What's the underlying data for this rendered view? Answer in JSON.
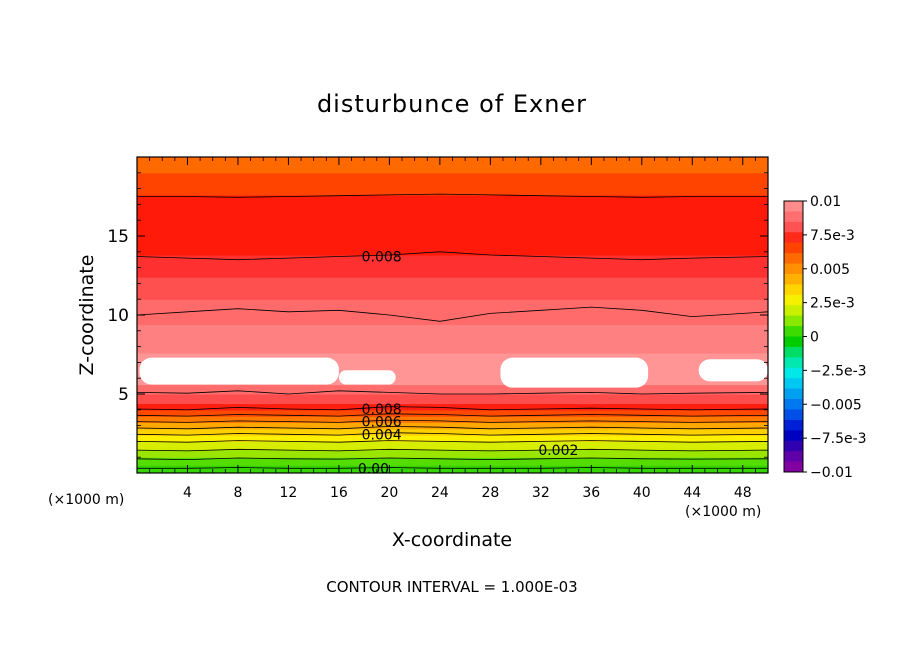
{
  "chart_data": {
    "type": "heatmap",
    "title": "disturbunce of Exner",
    "xlabel": "X-coordinate",
    "ylabel": "Z-coordinate",
    "x_unit_left": "(×1000 m)",
    "x_unit_right": "(×1000 m)",
    "footer": "CONTOUR INTERVAL = 1.000E-03",
    "xlim": [
      0,
      50
    ],
    "ylim": [
      0,
      20
    ],
    "x_ticks": [
      4,
      8,
      12,
      16,
      20,
      24,
      28,
      32,
      36,
      40,
      44,
      48
    ],
    "x_tick_labels": [
      "4",
      "8",
      "12",
      "16",
      "20",
      "24",
      "28",
      "32",
      "36",
      "40",
      "44",
      "48"
    ],
    "y_ticks": [
      5,
      10,
      15
    ],
    "y_tick_labels": [
      "5",
      "10",
      "15"
    ],
    "grid": false,
    "colorbar": {
      "placement": "right",
      "min": -0.01,
      "max": 0.01,
      "labels": [
        "0.01",
        "7.5e-3",
        "0.005",
        "2.5e-3",
        "0",
        "−2.5e-3",
        "−0.005",
        "−7.5e-3",
        "−0.01"
      ],
      "colors": [
        "#ff8c8c",
        "#ff6f6f",
        "#ff5252",
        "#ff2a1a",
        "#ff4400",
        "#ff6a00",
        "#ff9000",
        "#ffb000",
        "#ffd500",
        "#f5f000",
        "#c8f000",
        "#88e800",
        "#3cdc00",
        "#00cc00",
        "#00dd66",
        "#00e8b0",
        "#00e8e8",
        "#00c8f0",
        "#00a0f0",
        "#0078f0",
        "#0050e8",
        "#0020d8",
        "#0000c0",
        "#3000b0",
        "#6000a8",
        "#8000a0"
      ]
    },
    "bands": [
      {
        "z_top": 0.5,
        "value": 0.0005,
        "color": "#33d400"
      },
      {
        "z_top": 1.0,
        "value": 0.0012,
        "color": "#55dc00"
      },
      {
        "z_top": 1.5,
        "value": 0.0018,
        "color": "#9ae600"
      },
      {
        "z_top": 2.0,
        "value": 0.0025,
        "color": "#d8ee00"
      },
      {
        "z_top": 2.4,
        "value": 0.0033,
        "color": "#fff000"
      },
      {
        "z_top": 2.8,
        "value": 0.0042,
        "color": "#ffd000"
      },
      {
        "z_top": 3.2,
        "value": 0.0052,
        "color": "#ffa800"
      },
      {
        "z_top": 3.6,
        "value": 0.0062,
        "color": "#ff7a00"
      },
      {
        "z_top": 4.0,
        "value": 0.0072,
        "color": "#ff4a00"
      },
      {
        "z_top": 4.4,
        "value": 0.0082,
        "color": "#ff1e10"
      },
      {
        "z_top": 5.0,
        "value": 0.0088,
        "color": "#ff4c4c"
      },
      {
        "z_top": 5.6,
        "value": 0.0092,
        "color": "#ff6c6c"
      },
      {
        "z_top": 7.6,
        "value": 0.0097,
        "color": "#ff9595"
      },
      {
        "z_top": 9.4,
        "value": 0.0094,
        "color": "#ff8080"
      },
      {
        "z_top": 11.0,
        "value": 0.0091,
        "color": "#ff6a6a"
      },
      {
        "z_top": 12.4,
        "value": 0.0087,
        "color": "#ff5050"
      },
      {
        "z_top": 13.8,
        "value": 0.0083,
        "color": "#ff3030"
      },
      {
        "z_top": 17.6,
        "value": 0.0078,
        "color": "#ff1a0a"
      },
      {
        "z_top": 19.0,
        "value": 0.0072,
        "color": "#ff4400"
      },
      {
        "z_top": 20.0,
        "value": 0.0066,
        "color": "#ff6a00"
      }
    ],
    "high_regions": [
      {
        "x": [
          0.2,
          16.0
        ],
        "z": [
          5.6,
          7.3
        ],
        "value": 0.0101,
        "color": "#ffffff"
      },
      {
        "x": [
          16.0,
          20.5
        ],
        "z": [
          5.6,
          6.5
        ],
        "value": 0.0101,
        "color": "#ffffff"
      },
      {
        "x": [
          28.8,
          40.5
        ],
        "z": [
          5.4,
          7.3
        ],
        "value": 0.0101,
        "color": "#ffffff"
      },
      {
        "x": [
          44.5,
          50.0
        ],
        "z": [
          5.8,
          7.2
        ],
        "value": 0.0101,
        "color": "#ffffff"
      }
    ],
    "contour_lines": [
      {
        "value": "0.00",
        "z": [
          0.3,
          0.3,
          0.35,
          0.3,
          0.3,
          0.35,
          0.3,
          0.3,
          0.3,
          0.35,
          0.3,
          0.3,
          0.3
        ]
      },
      {
        "value": "0.001",
        "z": [
          0.9,
          0.85,
          0.95,
          0.9,
          0.88,
          0.95,
          0.9,
          0.85,
          0.9,
          0.95,
          0.9,
          0.88,
          0.9
        ]
      },
      {
        "value": "0.002",
        "z": [
          1.45,
          1.4,
          1.5,
          1.45,
          1.4,
          1.5,
          1.45,
          1.4,
          1.45,
          1.5,
          1.45,
          1.4,
          1.45
        ]
      },
      {
        "value": "0.003",
        "z": [
          2.0,
          1.95,
          2.05,
          2.0,
          1.95,
          2.05,
          2.0,
          1.95,
          2.0,
          2.05,
          2.0,
          1.95,
          2.0
        ]
      },
      {
        "value": "0.004",
        "z": [
          2.45,
          2.4,
          2.5,
          2.45,
          2.4,
          2.55,
          2.5,
          2.4,
          2.45,
          2.5,
          2.45,
          2.4,
          2.45
        ]
      },
      {
        "value": "0.005",
        "z": [
          2.85,
          2.8,
          2.9,
          2.85,
          2.8,
          2.95,
          2.9,
          2.8,
          2.85,
          2.9,
          2.85,
          2.8,
          2.85
        ]
      },
      {
        "value": "0.006",
        "z": [
          3.25,
          3.2,
          3.3,
          3.25,
          3.2,
          3.35,
          3.3,
          3.2,
          3.25,
          3.3,
          3.25,
          3.2,
          3.25
        ]
      },
      {
        "value": "0.007",
        "z": [
          3.65,
          3.6,
          3.7,
          3.65,
          3.6,
          3.75,
          3.7,
          3.6,
          3.65,
          3.7,
          3.65,
          3.6,
          3.65
        ]
      },
      {
        "value": "0.008",
        "z": [
          4.05,
          4.0,
          4.15,
          4.05,
          4.0,
          4.2,
          4.15,
          4.0,
          4.05,
          4.1,
          4.05,
          4.0,
          4.05
        ]
      },
      {
        "value": "0.009",
        "z": [
          5.1,
          5.05,
          5.2,
          5.0,
          5.2,
          5.1,
          5.0,
          5.0,
          5.05,
          5.1,
          5.0,
          5.05,
          5.1
        ]
      },
      {
        "value": "0.009",
        "z": [
          10.0,
          10.2,
          10.4,
          10.2,
          10.3,
          10.0,
          9.6,
          10.1,
          10.3,
          10.5,
          10.3,
          9.9,
          10.2
        ]
      },
      {
        "value": "0.008",
        "z": [
          13.7,
          13.6,
          13.5,
          13.6,
          13.7,
          13.8,
          14.0,
          13.8,
          13.7,
          13.6,
          13.5,
          13.6,
          13.7
        ]
      },
      {
        "value": "0.007",
        "z": [
          17.5,
          17.5,
          17.45,
          17.5,
          17.55,
          17.6,
          17.65,
          17.6,
          17.55,
          17.5,
          17.45,
          17.5,
          17.5
        ]
      }
    ],
    "contour_x": [
      0,
      4,
      8,
      12,
      16,
      20,
      24,
      28,
      32,
      36,
      40,
      44,
      50
    ],
    "contour_labels": [
      {
        "text": "0.008",
        "x": 17.8,
        "z": 13.7
      },
      {
        "text": "0.008",
        "x": 17.8,
        "z": 4.05
      },
      {
        "text": "0.006",
        "x": 17.8,
        "z": 3.25
      },
      {
        "text": "0.004",
        "x": 17.8,
        "z": 2.45
      },
      {
        "text": "0.002",
        "x": 31.8,
        "z": 1.45
      },
      {
        "text": "0.00",
        "x": 17.5,
        "z": 0.3
      }
    ]
  }
}
